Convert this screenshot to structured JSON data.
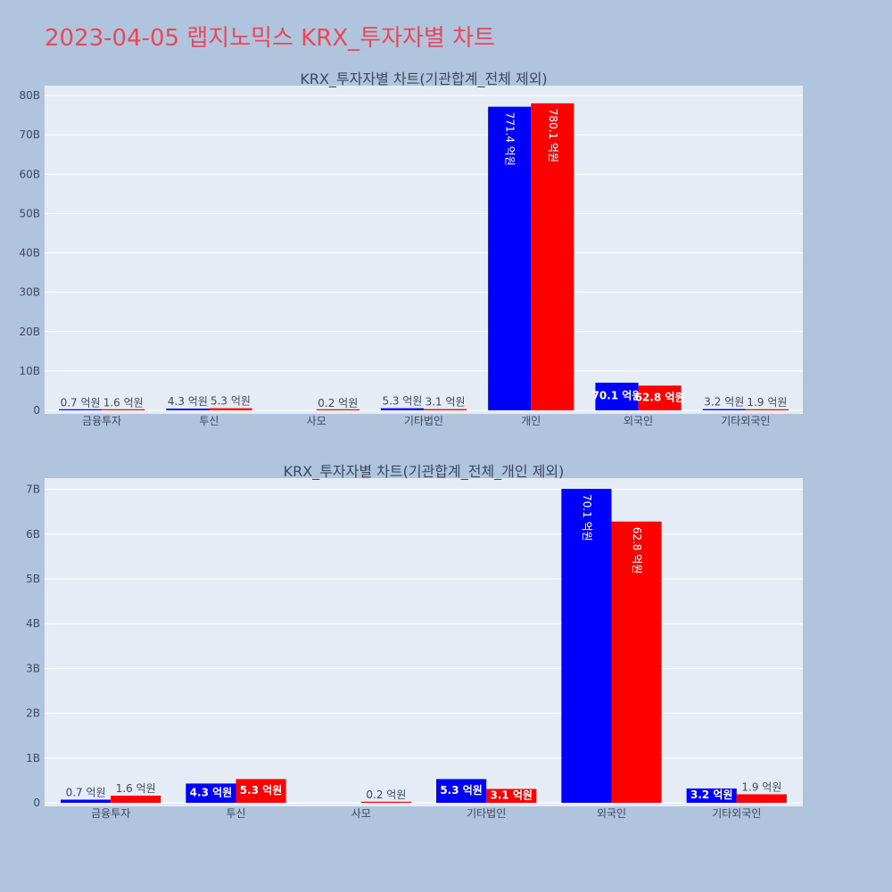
{
  "page": {
    "title": "2023-04-05 랩지노믹스 KRX_투자자별 차트"
  },
  "colors": {
    "background": "#b0c4de",
    "plot_bg": "#e5ecf6",
    "title": "#e8495a",
    "buy": "#0000ff",
    "sell": "#ff0000"
  },
  "chart_data": [
    {
      "type": "bar",
      "title": "KRX_투자자별 차트(기관합계_전체 제외)",
      "categories": [
        "금융투자",
        "투신",
        "사모",
        "기타법인",
        "개인",
        "외국인",
        "기타외국인"
      ],
      "series": [
        {
          "color": "#0000ff",
          "values": [
            0.07,
            0.43,
            null,
            0.53,
            77.14,
            7.01,
            0.32
          ],
          "labels": [
            "0.7 억원",
            "4.3 억원",
            "",
            "5.3 억원",
            "771.4 억원",
            "70.1 억원",
            "3.2 억원"
          ]
        },
        {
          "color": "#ff0000",
          "values": [
            0.16,
            0.53,
            0.02,
            0.31,
            78.01,
            6.28,
            0.19
          ],
          "labels": [
            "1.6 억원",
            "5.3 억원",
            "0.2 억원",
            "3.1 억원",
            "780.1 억원",
            "62.8 억원",
            "1.9 억원"
          ]
        }
      ],
      "yticks": [
        0,
        10,
        20,
        30,
        40,
        50,
        60,
        70,
        80
      ],
      "ytick_labels": [
        "0",
        "10B",
        "20B",
        "30B",
        "40B",
        "50B",
        "60B",
        "70B",
        "80B"
      ],
      "ylim": [
        0,
        82.5
      ],
      "grid": true
    },
    {
      "type": "bar",
      "title": "KRX_투자자별 차트(기관합계_전체_개인 제외)",
      "categories": [
        "금융투자",
        "투신",
        "사모",
        "기타법인",
        "외국인",
        "기타외국인"
      ],
      "series": [
        {
          "color": "#0000ff",
          "values": [
            0.07,
            0.43,
            null,
            0.53,
            7.01,
            0.32
          ],
          "labels": [
            "0.7 억원",
            "4.3 억원",
            "",
            "5.3 억원",
            "70.1 억원",
            "3.2 억원"
          ]
        },
        {
          "color": "#ff0000",
          "values": [
            0.16,
            0.53,
            0.02,
            0.31,
            6.28,
            0.19
          ],
          "labels": [
            "1.6 억원",
            "5.3 억원",
            "0.2 억원",
            "3.1 억원",
            "62.8 억원",
            "1.9 억원"
          ]
        }
      ],
      "yticks": [
        0,
        1,
        2,
        3,
        4,
        5,
        6,
        7
      ],
      "ytick_labels": [
        "0",
        "1B",
        "2B",
        "3B",
        "4B",
        "5B",
        "6B",
        "7B"
      ],
      "ylim": [
        0,
        7.25
      ],
      "grid": true
    }
  ]
}
